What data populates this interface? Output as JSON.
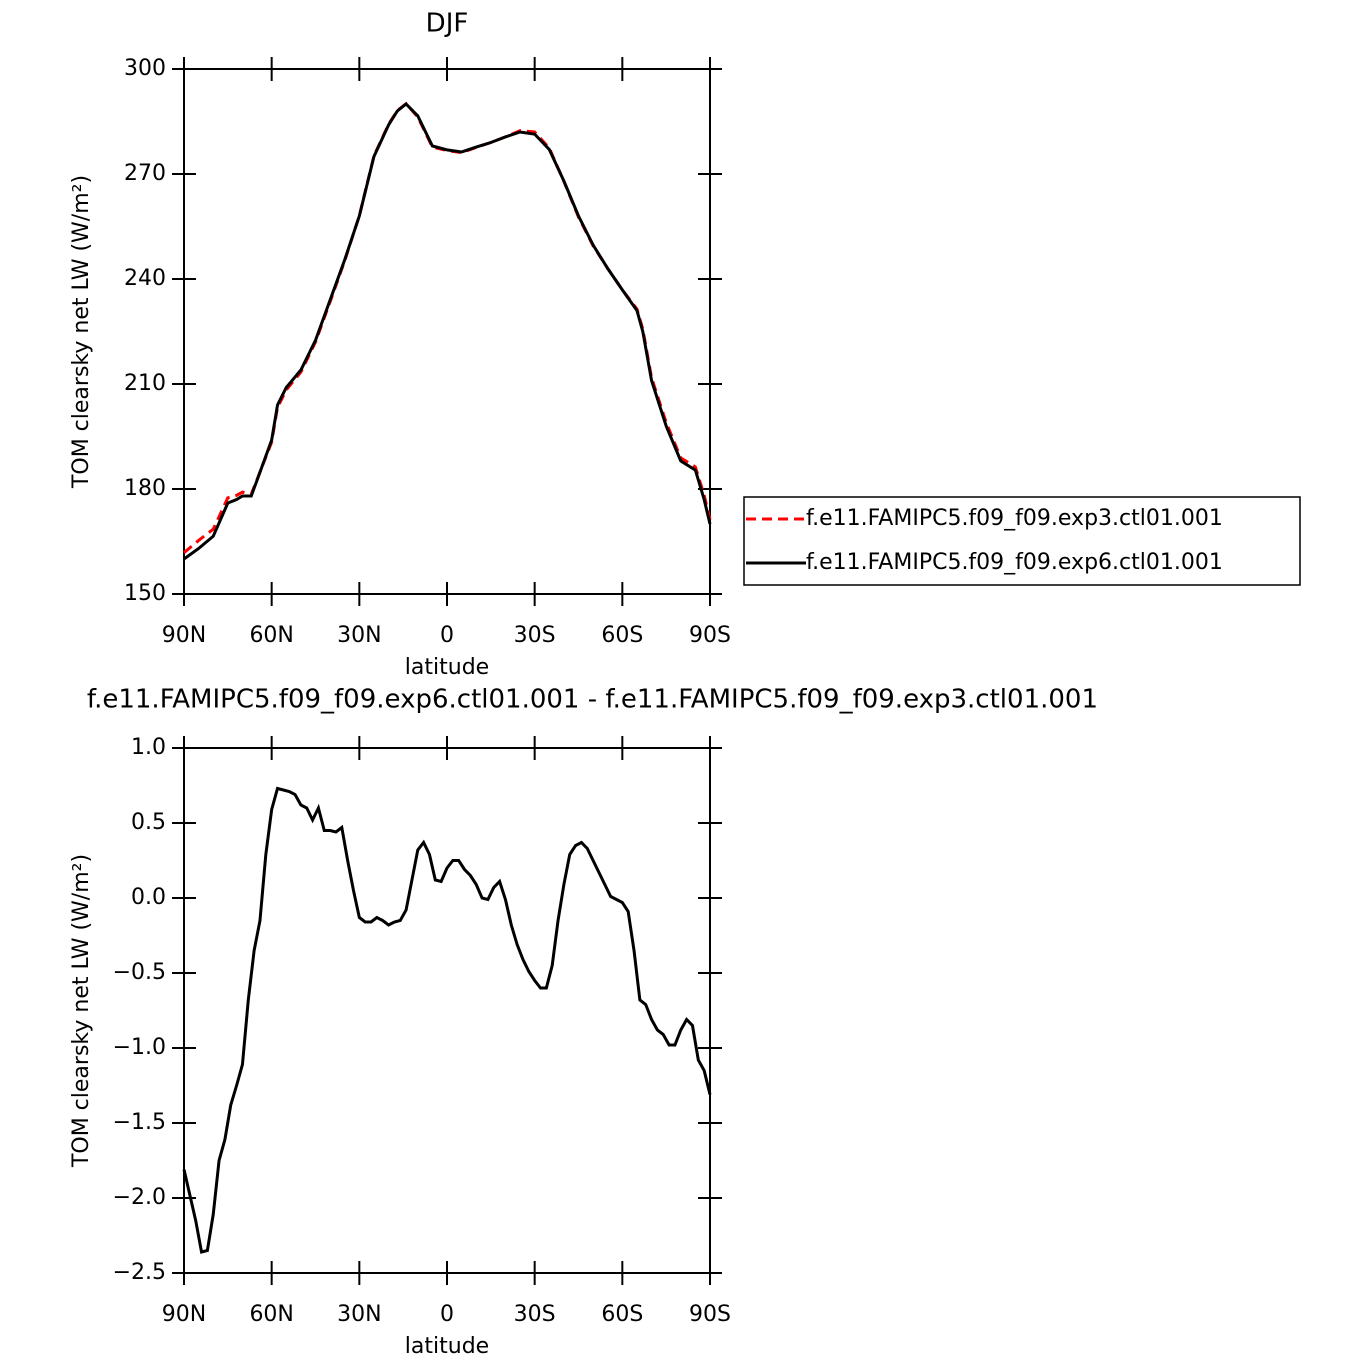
{
  "chart_data": [
    {
      "type": "line",
      "title": "DJF",
      "xlabel": "latitude",
      "ylabel": "TOM clearsky net LW (W/m²)",
      "xlim": [
        90,
        -90
      ],
      "ylim": [
        150,
        300
      ],
      "xticks": [
        {
          "value": 90,
          "label": "90N"
        },
        {
          "value": 60,
          "label": "60N"
        },
        {
          "value": 30,
          "label": "30N"
        },
        0,
        {
          "value": -30,
          "label": "30S"
        },
        {
          "value": -60,
          "label": "60S"
        },
        {
          "value": -90,
          "label": "90S"
        }
      ],
      "yticks": [
        150,
        180,
        210,
        240,
        270,
        300
      ],
      "legend": "right",
      "x": [
        90,
        85,
        80,
        75,
        72,
        70,
        67,
        65,
        60,
        58,
        55,
        50,
        45,
        40,
        35,
        30,
        25,
        20,
        17,
        14,
        10,
        5,
        0,
        -5,
        -10,
        -15,
        -20,
        -25,
        -30,
        -35,
        -40,
        -45,
        -50,
        -55,
        -60,
        -65,
        -67,
        -70,
        -75,
        -80,
        -85,
        -88,
        -90
      ],
      "series": [
        {
          "name": "f.e11.FAMIPC5.f09_f09.exp3.ctl01.001",
          "color": "#ff0000",
          "style": "dashed",
          "values": [
            161.8,
            165.3,
            168.5,
            177.5,
            178.2,
            179.1,
            178.5,
            182.7,
            193.4,
            203.3,
            208.3,
            213.4,
            222,
            233.5,
            245.2,
            258.1,
            275.2,
            284.2,
            288.1,
            290.1,
            286.3,
            277.7,
            276.7,
            276.1,
            277.6,
            279,
            280.6,
            282.4,
            282,
            277.4,
            267.9,
            257.7,
            249.5,
            243,
            236.9,
            231.4,
            225.7,
            211.8,
            199,
            188.9,
            186.3,
            178.2,
            171.3
          ]
        },
        {
          "name": "f.e11.FAMIPC5.f09_f09.exp6.ctl01.001",
          "color": "#000000",
          "style": "solid",
          "values": [
            160,
            163,
            166.5,
            176,
            177,
            178,
            178,
            182.5,
            194,
            204,
            209,
            214,
            222.5,
            234,
            245.5,
            258,
            275,
            284,
            288,
            290,
            286.6,
            278,
            276.9,
            276.3,
            277.7,
            279,
            280.6,
            282,
            281.4,
            277,
            268,
            258,
            249.7,
            243,
            236.9,
            231,
            225,
            211,
            198,
            188,
            185.4,
            177,
            170
          ]
        }
      ]
    },
    {
      "type": "line",
      "title": "f.e11.FAMIPC5.f09_f09.exp6.ctl01.001 - f.e11.FAMIPC5.f09_f09.exp3.ctl01.001",
      "xlabel": "latitude",
      "ylabel": "TOM clearsky net LW (W/m²)",
      "xlim": [
        90,
        -90
      ],
      "ylim": [
        -2.5,
        1.0
      ],
      "xticks": [
        {
          "value": 90,
          "label": "90N"
        },
        {
          "value": 60,
          "label": "60N"
        },
        {
          "value": 30,
          "label": "30N"
        },
        0,
        {
          "value": -30,
          "label": "30S"
        },
        {
          "value": -60,
          "label": "60S"
        },
        {
          "value": -90,
          "label": "90S"
        }
      ],
      "yticks": [
        {
          "value": -2.5,
          "label": "−2.5"
        },
        {
          "value": -2.0,
          "label": "−2.0"
        },
        {
          "value": -1.5,
          "label": "−1.5"
        },
        {
          "value": -1.0,
          "label": "−1.0"
        },
        {
          "value": -0.5,
          "label": "−0.5"
        },
        {
          "value": 0.0,
          "label": "0.0"
        },
        0.5,
        {
          "value": 1.0,
          "label": "1.0"
        }
      ],
      "x": [
        90,
        88,
        86,
        84,
        82,
        80,
        78,
        76,
        74,
        72,
        70,
        68,
        66,
        64,
        62,
        60,
        58,
        56,
        54,
        52,
        50,
        48,
        46,
        44,
        42,
        40,
        38,
        36,
        34,
        32,
        30,
        28,
        26,
        24,
        22,
        20,
        18,
        16,
        14,
        12,
        10,
        8,
        6,
        4,
        2,
        0,
        -2,
        -4,
        -6,
        -8,
        -10,
        -12,
        -14,
        -16,
        -18,
        -20,
        -22,
        -24,
        -26,
        -28,
        -30,
        -32,
        -34,
        -36,
        -38,
        -40,
        -42,
        -44,
        -46,
        -48,
        -50,
        -52,
        -54,
        -56,
        -58,
        -60,
        -62,
        -64,
        -66,
        -68,
        -70,
        -72,
        -74,
        -76,
        -78,
        -80,
        -82,
        -84,
        -86,
        -88,
        -90
      ],
      "series": [
        {
          "color": "#000000",
          "style": "solid",
          "values": [
            -1.81,
            -1.98,
            -2.15,
            -2.36,
            -2.35,
            -2.11,
            -1.75,
            -1.61,
            -1.38,
            -1.25,
            -1.11,
            -0.68,
            -0.35,
            -0.15,
            0.29,
            0.59,
            0.73,
            0.72,
            0.71,
            0.69,
            0.62,
            0.6,
            0.52,
            0.6,
            0.45,
            0.45,
            0.44,
            0.47,
            0.25,
            0.05,
            -0.13,
            -0.16,
            -0.16,
            -0.13,
            -0.15,
            -0.18,
            -0.16,
            -0.15,
            -0.08,
            0.12,
            0.32,
            0.37,
            0.29,
            0.12,
            0.11,
            0.2,
            0.25,
            0.25,
            0.19,
            0.15,
            0.09,
            0.0,
            -0.01,
            0.07,
            0.11,
            -0.01,
            -0.18,
            -0.31,
            -0.41,
            -0.49,
            -0.55,
            -0.6,
            -0.6,
            -0.45,
            -0.15,
            0.09,
            0.29,
            0.35,
            0.37,
            0.33,
            0.25,
            0.17,
            0.09,
            0.01,
            -0.01,
            -0.03,
            -0.09,
            -0.35,
            -0.68,
            -0.71,
            -0.81,
            -0.88,
            -0.91,
            -0.98,
            -0.98,
            -0.88,
            -0.81,
            -0.85,
            -1.08,
            -1.15,
            -1.31
          ]
        }
      ]
    }
  ]
}
